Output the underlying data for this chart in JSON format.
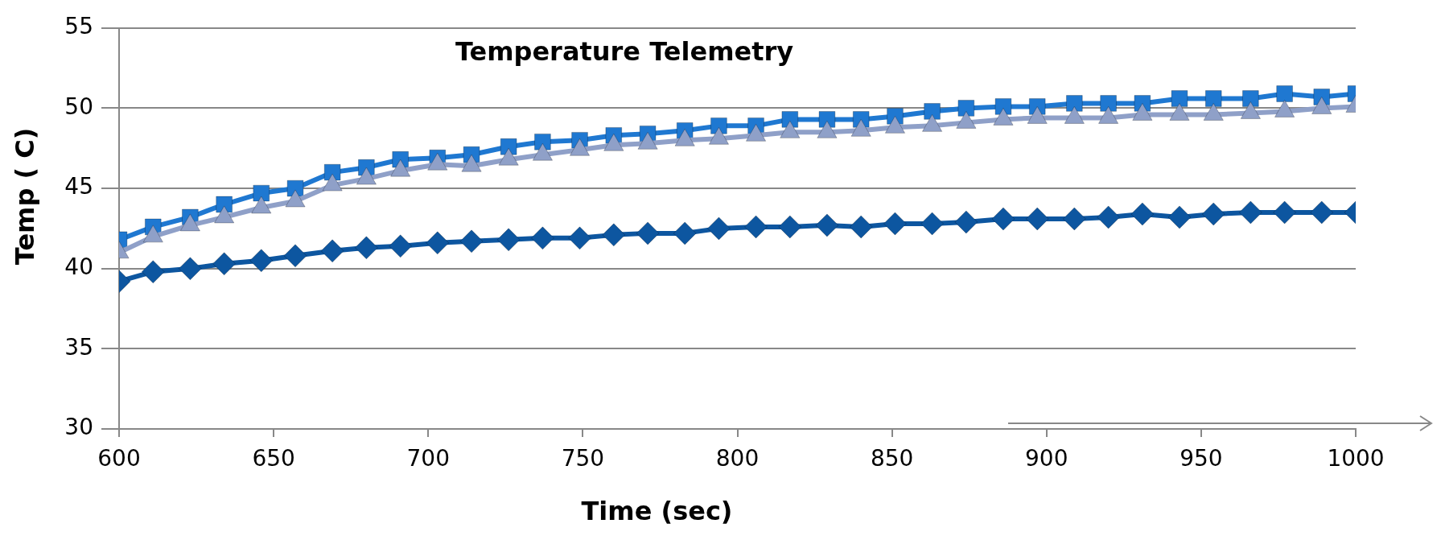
{
  "chart_data": {
    "type": "line",
    "title": "Temperature Telemetry",
    "xlabel": "Time (sec)",
    "ylabel": "Temp ( C)",
    "x": [
      600,
      611,
      623,
      634,
      646,
      657,
      669,
      680,
      691,
      703,
      714,
      726,
      737,
      749,
      760,
      771,
      783,
      794,
      806,
      817,
      829,
      840,
      851,
      863,
      874,
      886,
      897,
      909,
      920,
      931,
      943,
      954,
      966,
      977,
      989,
      1000
    ],
    "series": [
      {
        "color": "#1f78d1",
        "marker": "square",
        "values": [
          41.8,
          42.6,
          43.2,
          44.0,
          44.7,
          45.0,
          46.0,
          46.3,
          46.8,
          46.9,
          47.1,
          47.6,
          47.9,
          48.0,
          48.3,
          48.4,
          48.6,
          48.9,
          48.9,
          49.3,
          49.3,
          49.3,
          49.5,
          49.8,
          50.0,
          50.1,
          50.1,
          50.3,
          50.3,
          50.3,
          50.6,
          50.6,
          50.6,
          50.9,
          50.7,
          50.9
        ]
      },
      {
        "color": "#8fa0c8",
        "marker": "triangle",
        "values": [
          41.0,
          42.0,
          42.7,
          43.2,
          43.8,
          44.2,
          45.2,
          45.6,
          46.1,
          46.5,
          46.4,
          46.8,
          47.1,
          47.4,
          47.7,
          47.8,
          48.0,
          48.1,
          48.3,
          48.5,
          48.5,
          48.6,
          48.8,
          48.9,
          49.1,
          49.3,
          49.4,
          49.4,
          49.4,
          49.6,
          49.6,
          49.6,
          49.7,
          49.8,
          50.0,
          50.1
        ]
      },
      {
        "color": "#0d56a0",
        "marker": "diamond",
        "values": [
          39.2,
          39.8,
          40.0,
          40.3,
          40.5,
          40.8,
          41.1,
          41.3,
          41.4,
          41.6,
          41.7,
          41.8,
          41.9,
          41.9,
          42.1,
          42.2,
          42.2,
          42.5,
          42.6,
          42.6,
          42.7,
          42.6,
          42.8,
          42.8,
          42.9,
          43.1,
          43.1,
          43.1,
          43.2,
          43.4,
          43.2,
          43.4,
          43.5,
          43.5,
          43.5,
          43.5
        ]
      }
    ],
    "xlim": [
      600,
      1000
    ],
    "xticks": [
      600,
      650,
      700,
      750,
      800,
      850,
      900,
      950,
      1000
    ],
    "ylim": [
      30,
      55
    ],
    "yticks": [
      30,
      35,
      40,
      45,
      50,
      55
    ],
    "grid": "y",
    "legend": false,
    "line_style": "solid"
  }
}
